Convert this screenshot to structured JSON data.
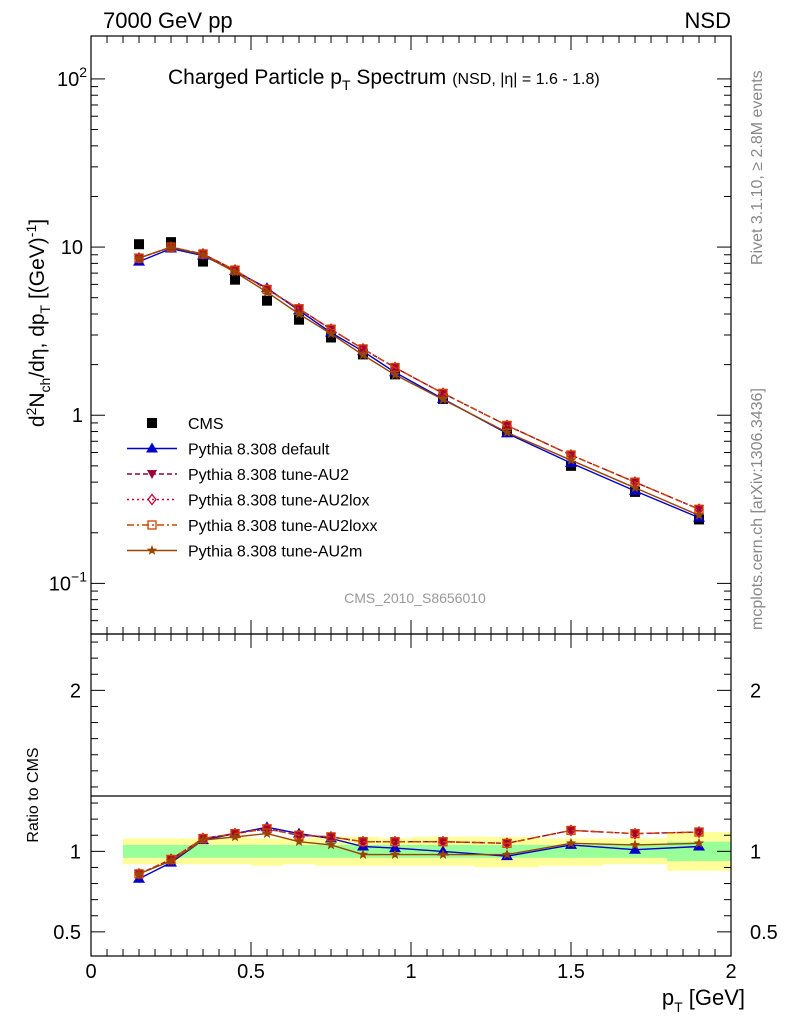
{
  "header": {
    "left": "7000 GeV pp",
    "right": "NSD"
  },
  "side_labels": {
    "rivet": "Rivet 3.1.10, ≥ 2.8M events",
    "mcplots": "mcplots.cern.ch [arXiv:1306.3436]"
  },
  "watermark": "CMS_2010_S8656010",
  "chart_data": [
    {
      "type": "line",
      "title_main": "Charged Particle p",
      "title_sub": "T",
      "title_tail": " Spectrum",
      "title_note": "(NSD, |η| = 1.6 - 1.8)",
      "ylabel_parts": [
        "d",
        "2",
        "N",
        "ch",
        "/dη, dp",
        "T",
        " [(GeV)",
        "-1",
        "]"
      ],
      "yscale": "log",
      "ylim": [
        0.05,
        180
      ],
      "xlim": [
        0,
        2
      ],
      "yticks": [
        {
          "v": 0.1,
          "b": "10",
          "e": "−1"
        },
        {
          "v": 1,
          "b": "1",
          "e": ""
        },
        {
          "v": 10,
          "b": "10",
          "e": ""
        },
        {
          "v": 100,
          "b": "10",
          "e": "2"
        }
      ],
      "x": [
        0.15,
        0.25,
        0.35,
        0.45,
        0.55,
        0.65,
        0.75,
        0.85,
        0.95,
        1.1,
        1.3,
        1.5,
        1.7,
        1.9
      ],
      "series": [
        {
          "name": "CMS",
          "color": "#000000",
          "marker": "square",
          "values": [
            10.4,
            10.7,
            8.2,
            6.4,
            4.8,
            3.7,
            2.9,
            2.3,
            1.75,
            1.25,
            0.8,
            0.5,
            0.35,
            0.24
          ]
        },
        {
          "name": "Pythia 8.308 default",
          "color": "#0000cc",
          "marker": "triangle-up",
          "dash": "",
          "values": [
            8.2,
            9.8,
            8.9,
            7.2,
            5.7,
            4.2,
            3.1,
            2.4,
            1.8,
            1.25,
            0.78,
            0.52,
            0.355,
            0.246
          ]
        },
        {
          "name": "Pythia 8.308 tune-AU2",
          "color": "#990033",
          "marker": "triangle-down",
          "dash": "5,3",
          "values": [
            8.6,
            10.0,
            9.1,
            7.3,
            5.6,
            4.3,
            3.25,
            2.48,
            1.92,
            1.35,
            0.87,
            0.58,
            0.4,
            0.276
          ]
        },
        {
          "name": "Pythia 8.308 tune-AU2lox",
          "color": "#cc0033",
          "marker": "diamond",
          "dash": "2,3",
          "values": [
            8.6,
            10.0,
            9.1,
            7.3,
            5.6,
            4.3,
            3.25,
            2.48,
            1.92,
            1.35,
            0.87,
            0.58,
            0.4,
            0.276
          ]
        },
        {
          "name": "Pythia 8.308 tune-AU2loxx",
          "color": "#cc4400",
          "marker": "square-open",
          "dash": "7,3,2,3",
          "values": [
            8.6,
            10.0,
            9.1,
            7.3,
            5.6,
            4.3,
            3.25,
            2.48,
            1.92,
            1.35,
            0.87,
            0.58,
            0.4,
            0.276
          ]
        },
        {
          "name": "Pythia 8.308 tune-AU2m",
          "color": "#994400",
          "marker": "star",
          "dash": "",
          "values": [
            8.6,
            10.0,
            9.0,
            7.1,
            5.4,
            4.0,
            3.05,
            2.28,
            1.74,
            1.24,
            0.79,
            0.54,
            0.37,
            0.254
          ]
        }
      ]
    },
    {
      "type": "line",
      "ylabel": "Ratio to CMS",
      "xlabel_base": "p",
      "xlabel_sub": "T",
      "xlabel_tail": " [GeV]",
      "ylim": [
        0.35,
        2.35
      ],
      "xlim": [
        0,
        2
      ],
      "yticks": [
        0.5,
        1,
        2
      ],
      "xticks": [
        0,
        0.5,
        1,
        1.5,
        2
      ],
      "bands": {
        "x_edges": [
          0.1,
          0.2,
          0.3,
          0.4,
          0.5,
          0.6,
          0.7,
          0.8,
          0.9,
          1.0,
          1.2,
          1.4,
          1.6,
          1.8,
          2.0
        ],
        "yellow_upper": [
          1.08,
          1.08,
          1.08,
          1.09,
          1.08,
          1.08,
          1.09,
          1.09,
          1.08,
          1.09,
          1.09,
          1.08,
          1.08,
          1.12
        ],
        "yellow_lower": [
          0.92,
          0.92,
          0.92,
          0.92,
          0.91,
          0.92,
          0.91,
          0.91,
          0.91,
          0.91,
          0.9,
          0.91,
          0.92,
          0.88
        ],
        "green_upper": [
          1.04,
          1.04,
          1.04,
          1.04,
          1.04,
          1.04,
          1.04,
          1.04,
          1.04,
          1.04,
          1.04,
          1.04,
          1.04,
          1.06
        ],
        "green_lower": [
          0.96,
          0.96,
          0.96,
          0.96,
          0.96,
          0.96,
          0.96,
          0.96,
          0.96,
          0.96,
          0.96,
          0.96,
          0.96,
          0.94
        ],
        "yellow_color": "#ffff99",
        "green_color": "#99ff99"
      },
      "x": [
        0.15,
        0.25,
        0.35,
        0.45,
        0.55,
        0.65,
        0.75,
        0.85,
        0.95,
        1.1,
        1.3,
        1.5,
        1.7,
        1.9
      ],
      "series": [
        {
          "name": "Pythia 8.308 default",
          "color": "#0000cc",
          "marker": "triangle-up",
          "dash": "",
          "values": [
            0.83,
            0.93,
            1.07,
            1.11,
            1.15,
            1.11,
            1.08,
            1.03,
            1.02,
            1.0,
            0.97,
            1.04,
            1.01,
            1.03
          ]
        },
        {
          "name": "Pythia 8.308 tune-AU2",
          "color": "#990033",
          "marker": "triangle-down",
          "dash": "5,3",
          "values": [
            0.86,
            0.95,
            1.08,
            1.11,
            1.14,
            1.1,
            1.09,
            1.06,
            1.06,
            1.06,
            1.05,
            1.13,
            1.11,
            1.12
          ]
        },
        {
          "name": "Pythia 8.308 tune-AU2lox",
          "color": "#cc0033",
          "marker": "diamond",
          "dash": "2,3",
          "values": [
            0.86,
            0.95,
            1.08,
            1.11,
            1.14,
            1.1,
            1.09,
            1.06,
            1.06,
            1.06,
            1.05,
            1.13,
            1.11,
            1.12
          ]
        },
        {
          "name": "Pythia 8.308 tune-AU2loxx",
          "color": "#cc4400",
          "marker": "square-open",
          "dash": "7,3,2,3",
          "values": [
            0.86,
            0.95,
            1.08,
            1.11,
            1.14,
            1.1,
            1.09,
            1.06,
            1.06,
            1.06,
            1.05,
            1.13,
            1.11,
            1.12
          ]
        },
        {
          "name": "Pythia 8.308 tune-AU2m",
          "color": "#994400",
          "marker": "star",
          "dash": "",
          "values": [
            0.86,
            0.94,
            1.07,
            1.09,
            1.11,
            1.06,
            1.04,
            0.98,
            0.98,
            0.98,
            0.98,
            1.05,
            1.04,
            1.05
          ]
        }
      ]
    }
  ]
}
